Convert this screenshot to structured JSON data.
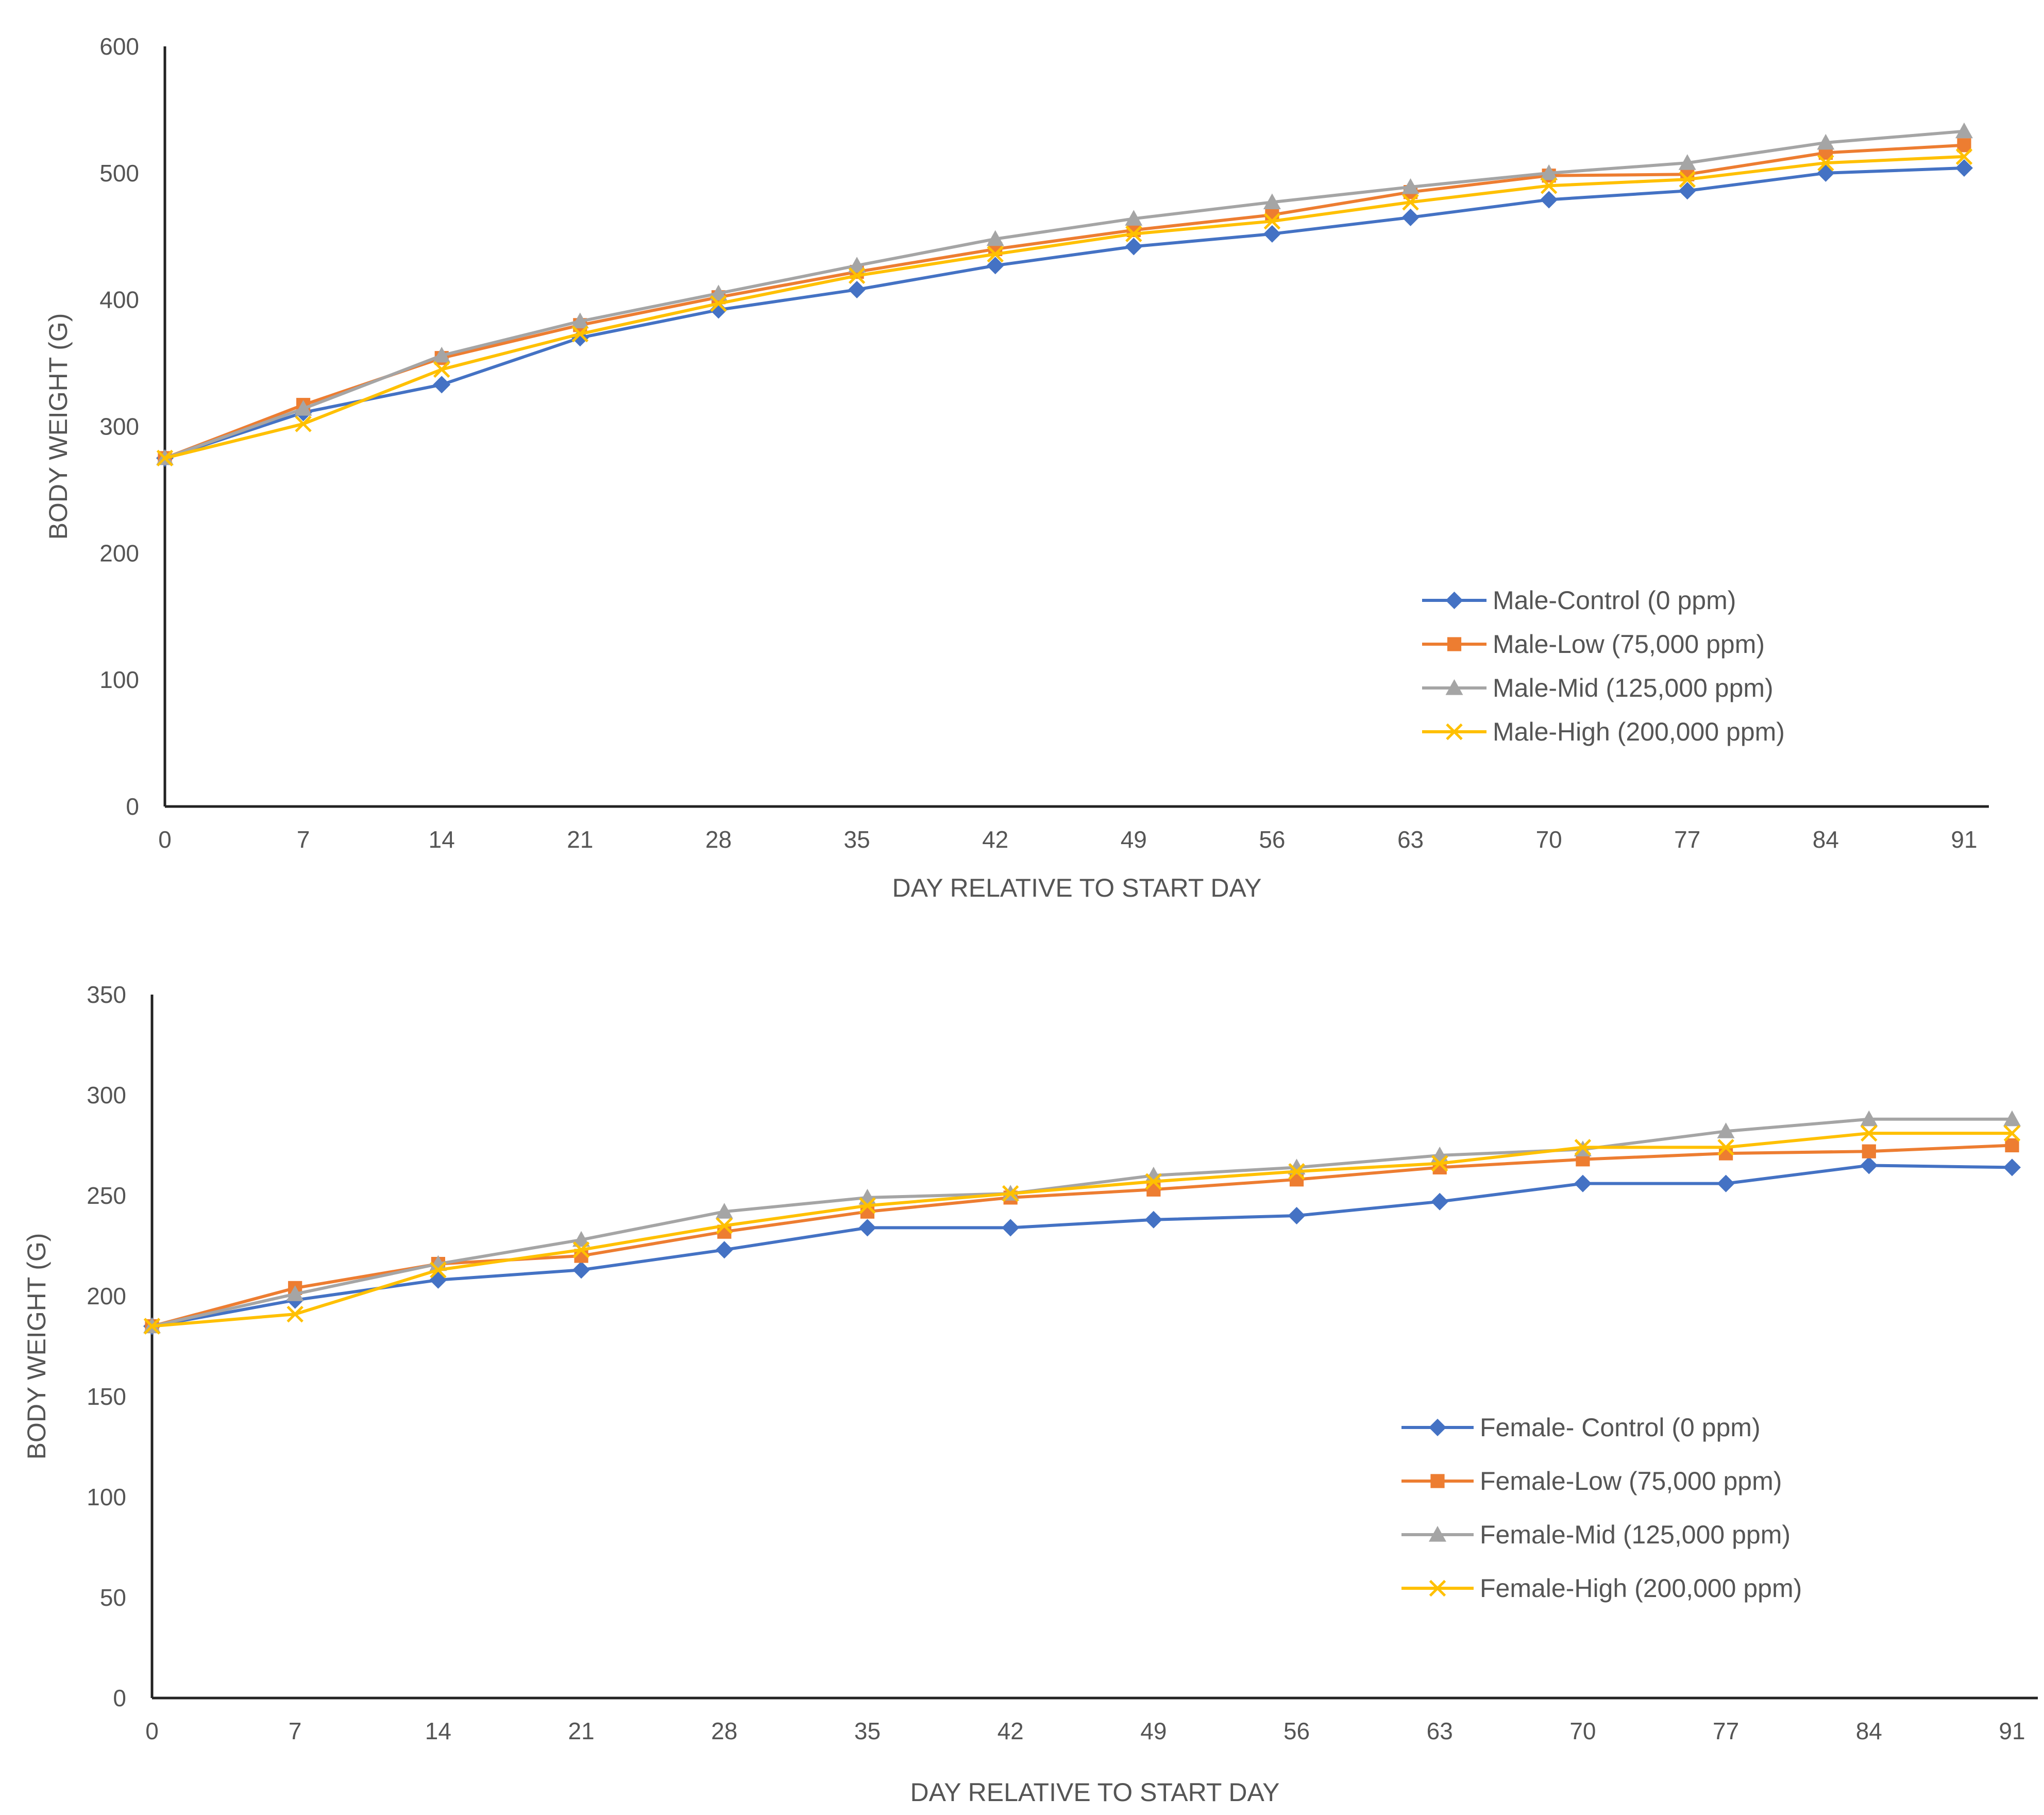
{
  "chart_data": [
    {
      "id": "male",
      "type": "line",
      "title": "",
      "xlabel": "DAY RELATIVE TO START DAY",
      "ylabel": "BODY WEIGHT (G)",
      "ylim": [
        0,
        600
      ],
      "yticks": [
        0,
        100,
        200,
        300,
        400,
        500,
        600
      ],
      "categories": [
        "0",
        "7",
        "14",
        "21",
        "28",
        "35",
        "42",
        "49",
        "56",
        "63",
        "70",
        "77",
        "84",
        "91"
      ],
      "grid": false,
      "legend_position": "lower-right",
      "series": [
        {
          "name": "Male-Control (0 ppm)",
          "color": "#4472C4",
          "marker": "diamond",
          "values": [
            275,
            311,
            333,
            370,
            392,
            408,
            427,
            442,
            452,
            465,
            479,
            486,
            500,
            504
          ]
        },
        {
          "name": "Male-Low (75,000 ppm)",
          "color": "#ED7D31",
          "marker": "square",
          "values": [
            275,
            317,
            354,
            380,
            402,
            422,
            440,
            455,
            467,
            485,
            498,
            499,
            516,
            522
          ]
        },
        {
          "name": "Male-Mid (125,000 ppm)",
          "color": "#A5A5A5",
          "marker": "triangle",
          "values": [
            275,
            314,
            356,
            383,
            405,
            427,
            448,
            464,
            477,
            489,
            500,
            508,
            524,
            533
          ]
        },
        {
          "name": "Male-High (200,000 ppm)",
          "color": "#FFC000",
          "marker": "x",
          "values": [
            275,
            302,
            345,
            373,
            397,
            419,
            436,
            452,
            462,
            477,
            490,
            495,
            508,
            513
          ]
        }
      ]
    },
    {
      "id": "female",
      "type": "line",
      "title": "",
      "xlabel": "DAY RELATIVE TO START DAY",
      "ylabel": "BODY WEIGHT (G)",
      "ylim": [
        0,
        350
      ],
      "yticks": [
        0,
        50,
        100,
        150,
        200,
        250,
        300,
        350
      ],
      "categories": [
        "0",
        "7",
        "14",
        "21",
        "28",
        "35",
        "42",
        "49",
        "56",
        "63",
        "70",
        "77",
        "84",
        "91"
      ],
      "grid": false,
      "legend_position": "lower-right",
      "series": [
        {
          "name": "Female- Control (0 ppm)",
          "color": "#4472C4",
          "marker": "diamond",
          "values": [
            185,
            198,
            208,
            213,
            223,
            234,
            234,
            238,
            240,
            247,
            256,
            256,
            265,
            264
          ]
        },
        {
          "name": "Female-Low (75,000 ppm)",
          "color": "#ED7D31",
          "marker": "square",
          "values": [
            185,
            204,
            216,
            220,
            232,
            242,
            249,
            253,
            258,
            264,
            268,
            271,
            272,
            275
          ]
        },
        {
          "name": "Female-Mid (125,000 ppm)",
          "color": "#A5A5A5",
          "marker": "triangle",
          "values": [
            185,
            201,
            216,
            228,
            242,
            249,
            251,
            260,
            264,
            270,
            273,
            282,
            288,
            288
          ]
        },
        {
          "name": "Female-High (200,000 ppm)",
          "color": "#FFC000",
          "marker": "x",
          "values": [
            185,
            191,
            213,
            223,
            235,
            245,
            251,
            257,
            262,
            266,
            274,
            274,
            281,
            281
          ]
        }
      ]
    }
  ]
}
